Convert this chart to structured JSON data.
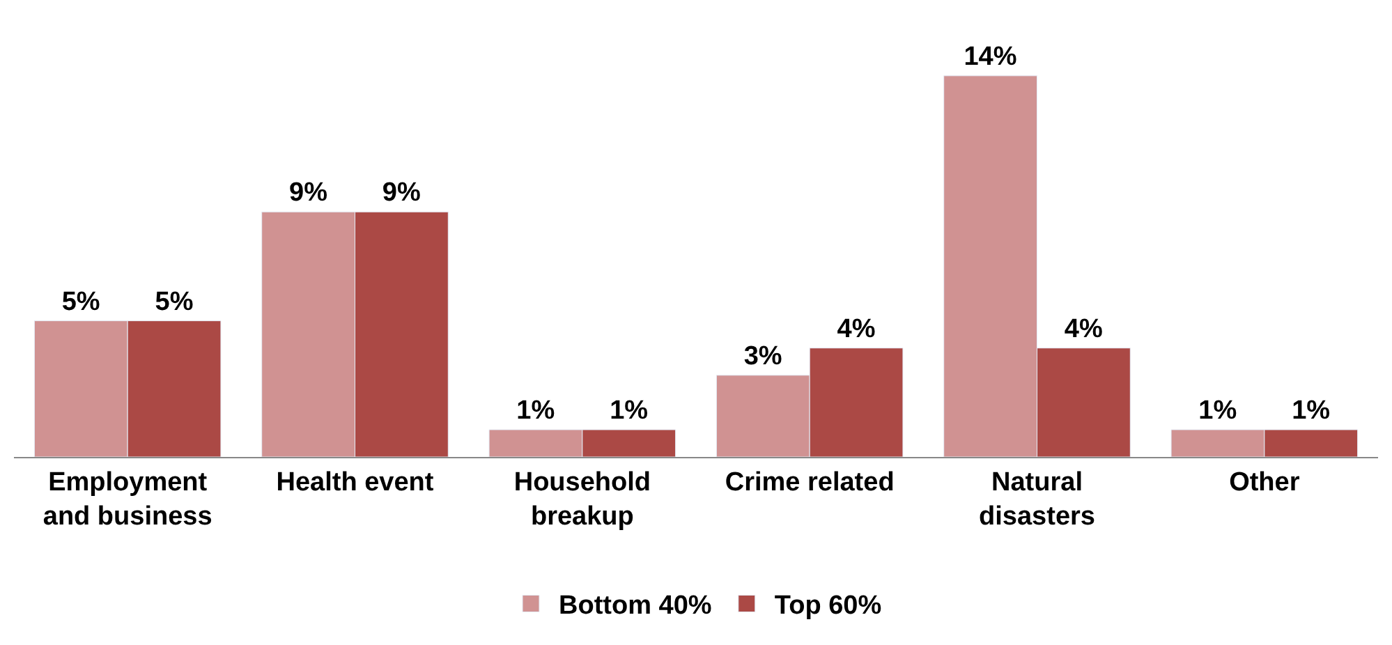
{
  "chart_data": {
    "type": "bar",
    "categories": [
      "Employment\nand business",
      "Health event",
      "Household\nbreakup",
      "Crime related",
      "Natural\ndisasters",
      "Other"
    ],
    "series": [
      {
        "name": "Bottom 40%",
        "color": "#d09292",
        "values": [
          5,
          9,
          1,
          3,
          14,
          1
        ],
        "value_labels": [
          "5%",
          "9%",
          "1%",
          "3%",
          "14%",
          "1%"
        ]
      },
      {
        "name": "Top 60%",
        "color": "#ab4945",
        "values": [
          5,
          9,
          1,
          4,
          4,
          1
        ],
        "value_labels": [
          "5%",
          "9%",
          "1%",
          "4%",
          "4%",
          "1%"
        ]
      }
    ],
    "legend": "bottom"
  }
}
